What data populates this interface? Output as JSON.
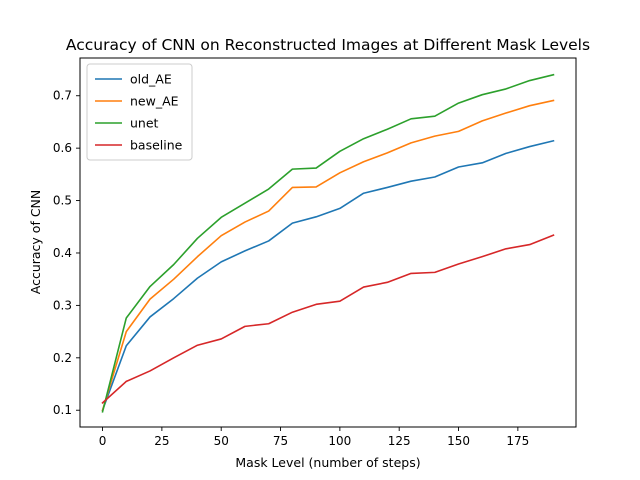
{
  "chart_data": {
    "type": "line",
    "title": "Accuracy of CNN on Reconstructed Images at Different Mask Levels",
    "xlabel": "Mask Level (number of steps)",
    "ylabel": "Accuracy of CNN",
    "xlim": [
      -9.5,
      199.5
    ],
    "ylim": [
      0.068,
      0.772
    ],
    "xticks": [
      0,
      25,
      50,
      75,
      100,
      125,
      150,
      175
    ],
    "yticks": [
      0.1,
      0.2,
      0.3,
      0.4,
      0.5,
      0.6,
      0.7
    ],
    "x": [
      0,
      10,
      20,
      30,
      40,
      50,
      60,
      70,
      80,
      90,
      100,
      110,
      120,
      130,
      140,
      150,
      160,
      170,
      180,
      190
    ],
    "grid": false,
    "legend_position": "top-left",
    "series": [
      {
        "name": "old_AE",
        "color": "#1f77b4",
        "values": [
          0.1,
          0.223,
          0.278,
          0.313,
          0.352,
          0.383,
          0.404,
          0.423,
          0.457,
          0.469,
          0.485,
          0.514,
          0.525,
          0.537,
          0.545,
          0.564,
          0.572,
          0.59,
          0.603,
          0.614
        ]
      },
      {
        "name": "new_AE",
        "color": "#ff7f0e",
        "values": [
          0.1,
          0.25,
          0.312,
          0.35,
          0.393,
          0.433,
          0.459,
          0.48,
          0.525,
          0.526,
          0.553,
          0.574,
          0.591,
          0.61,
          0.623,
          0.632,
          0.652,
          0.667,
          0.681,
          0.691
        ]
      },
      {
        "name": "unet",
        "color": "#2ca02c",
        "values": [
          0.097,
          0.276,
          0.336,
          0.378,
          0.428,
          0.468,
          0.495,
          0.522,
          0.56,
          0.562,
          0.594,
          0.618,
          0.636,
          0.656,
          0.661,
          0.686,
          0.702,
          0.713,
          0.729,
          0.74
        ]
      },
      {
        "name": "baseline",
        "color": "#d62728",
        "values": [
          0.114,
          0.155,
          0.175,
          0.2,
          0.224,
          0.236,
          0.26,
          0.265,
          0.287,
          0.302,
          0.308,
          0.335,
          0.344,
          0.361,
          0.363,
          0.379,
          0.393,
          0.408,
          0.416,
          0.434
        ]
      }
    ]
  }
}
